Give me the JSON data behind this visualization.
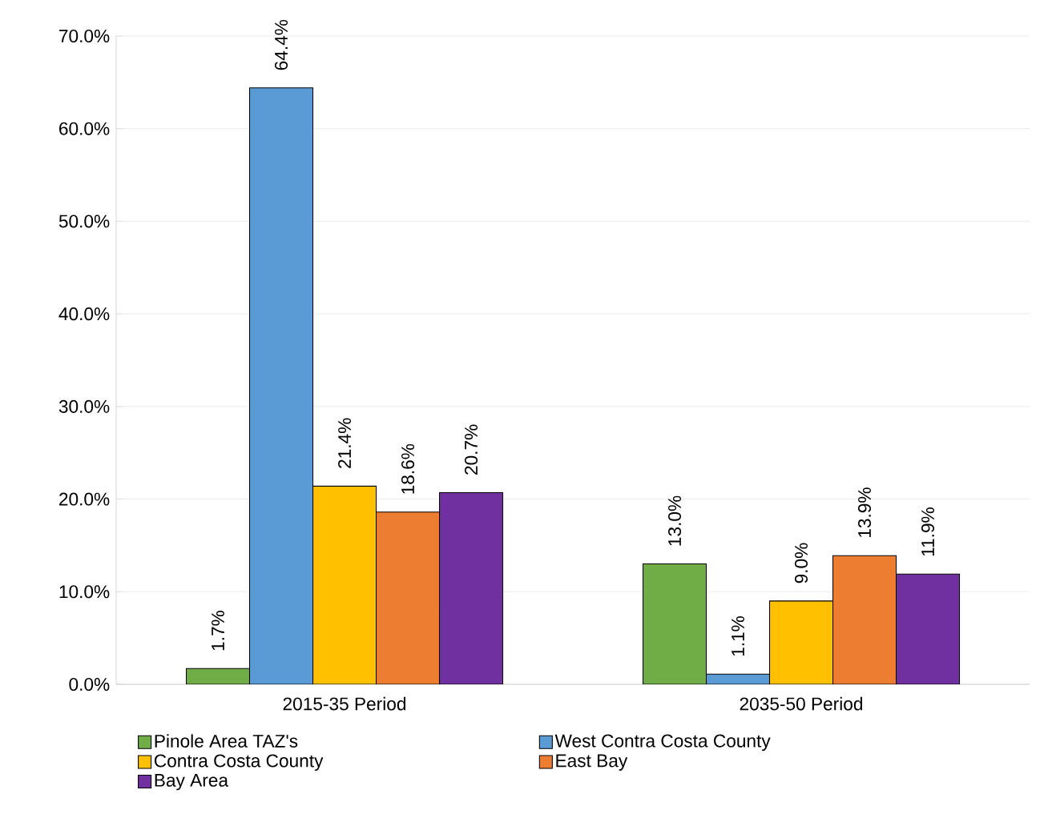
{
  "chart_data": {
    "type": "bar",
    "categories": [
      "2015-35 Period",
      "2035-50 Period"
    ],
    "series": [
      {
        "name": "Pinole Area TAZ's",
        "color": "#70ad47",
        "values": [
          1.7,
          13.0
        ],
        "value_labels": [
          "1.7%",
          "13.0%"
        ]
      },
      {
        "name": "West Contra Costa County",
        "color": "#5b9bd5",
        "values": [
          64.4,
          1.1
        ],
        "value_labels": [
          "64.4%",
          "1.1%"
        ]
      },
      {
        "name": "Contra Costa County",
        "color": "#ffc000",
        "values": [
          21.4,
          9.0
        ],
        "value_labels": [
          "21.4%",
          "9.0%"
        ]
      },
      {
        "name": "East Bay",
        "color": "#ed7d31",
        "values": [
          18.6,
          13.9
        ],
        "value_labels": [
          "18.6%",
          "13.9%"
        ]
      },
      {
        "name": "Bay Area",
        "color": "#7030a0",
        "values": [
          20.7,
          11.9
        ],
        "value_labels": [
          "20.7%",
          "11.9%"
        ]
      }
    ],
    "ylim": [
      0,
      70
    ],
    "yticks": [
      {
        "value": 0,
        "label": "0.0%"
      },
      {
        "value": 10,
        "label": "10.0%"
      },
      {
        "value": 20,
        "label": "20.0%"
      },
      {
        "value": 30,
        "label": "30.0%"
      },
      {
        "value": 40,
        "label": "40.0%"
      },
      {
        "value": 50,
        "label": "50.0%"
      },
      {
        "value": 60,
        "label": "60.0%"
      },
      {
        "value": 70,
        "label": "70.0%"
      }
    ],
    "grid": "y",
    "legend": "bottom"
  }
}
